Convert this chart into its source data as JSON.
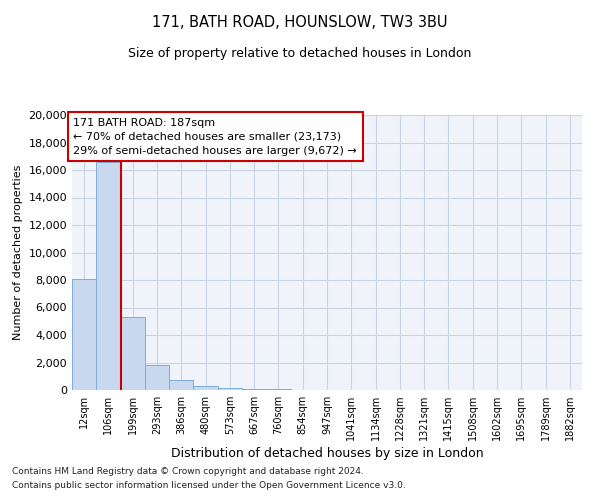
{
  "title1": "171, BATH ROAD, HOUNSLOW, TW3 3BU",
  "title2": "Size of property relative to detached houses in London",
  "xlabel": "Distribution of detached houses by size in London",
  "ylabel": "Number of detached properties",
  "bar_labels": [
    "12sqm",
    "106sqm",
    "199sqm",
    "293sqm",
    "386sqm",
    "480sqm",
    "573sqm",
    "667sqm",
    "760sqm",
    "854sqm",
    "947sqm",
    "1041sqm",
    "1134sqm",
    "1228sqm",
    "1321sqm",
    "1415sqm",
    "1508sqm",
    "1602sqm",
    "1695sqm",
    "1789sqm",
    "1882sqm"
  ],
  "bar_heights": [
    8100,
    16600,
    5300,
    1800,
    750,
    280,
    150,
    80,
    100,
    0,
    0,
    0,
    0,
    0,
    0,
    0,
    0,
    0,
    0,
    0,
    0
  ],
  "bar_color": "#c8d8ee",
  "bar_edge_color": "#7bafd4",
  "grid_color": "#c8d4e4",
  "bg_color": "#f0f4fa",
  "vline_color": "#cc0000",
  "vline_pos": 1.5,
  "annotation_title": "171 BATH ROAD: 187sqm",
  "annotation_line1": "← 70% of detached houses are smaller (23,173)",
  "annotation_line2": "29% of semi-detached houses are larger (9,672) →",
  "annotation_box_color": "#cc0000",
  "ylim": [
    0,
    20000
  ],
  "yticks": [
    0,
    2000,
    4000,
    6000,
    8000,
    10000,
    12000,
    14000,
    16000,
    18000,
    20000
  ],
  "footnote1": "Contains HM Land Registry data © Crown copyright and database right 2024.",
  "footnote2": "Contains public sector information licensed under the Open Government Licence v3.0."
}
